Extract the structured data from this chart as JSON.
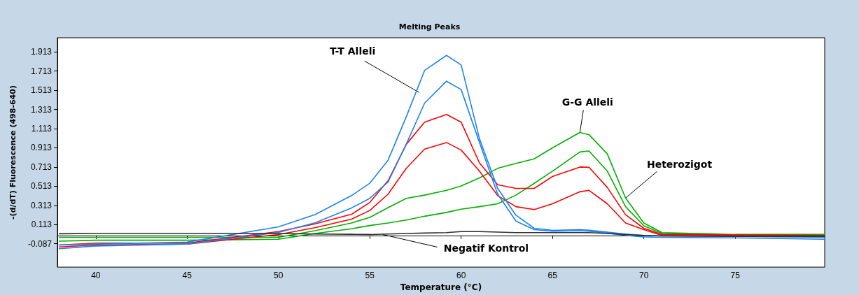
{
  "chart_data": {
    "type": "line",
    "title": "Melting Peaks",
    "xlabel": "Temperature (°C)",
    "ylabel": "-(d/dT) Fluorescence (498-640)",
    "x": [
      38,
      40,
      45,
      50,
      52,
      54,
      55,
      56,
      57,
      58,
      59.2,
      60,
      61,
      62,
      63,
      64,
      65,
      66.5,
      67,
      68,
      69,
      70,
      71,
      75,
      79.9
    ],
    "xlim": [
      37.9,
      79.9
    ],
    "xticks": [
      40,
      45,
      50,
      55,
      60,
      65,
      70,
      75
    ],
    "ylim": [
      -0.33,
      2.06
    ],
    "yticks": [
      -0.087,
      0.113,
      0.313,
      0.513,
      0.713,
      0.913,
      1.113,
      1.313,
      1.513,
      1.713,
      1.913
    ],
    "grid": false,
    "marker": "none",
    "line_style": "solid",
    "series": [
      {
        "color": "#00b000",
        "values": [
          -0.02,
          -0.02,
          -0.02,
          -0.02,
          0.05,
          0.13,
          0.188,
          0.29,
          0.387,
          0.42,
          0.47,
          0.515,
          0.6,
          0.699,
          0.75,
          0.798,
          0.913,
          1.073,
          1.05,
          0.85,
          0.39,
          0.13,
          0.03,
          0.01,
          0.01
        ]
      },
      {
        "color": "#00b000",
        "values": [
          -0.06,
          -0.05,
          -0.05,
          -0.04,
          0.02,
          0.07,
          0.103,
          0.13,
          0.16,
          0.2,
          0.24,
          0.273,
          0.3,
          0.33,
          0.42,
          0.543,
          0.67,
          0.87,
          0.88,
          0.67,
          0.3,
          0.1,
          0.02,
          0.0,
          0.0
        ]
      },
      {
        "color": "#ff0000",
        "values": [
          -0.1,
          -0.08,
          -0.08,
          0.04,
          0.12,
          0.22,
          0.344,
          0.57,
          0.95,
          1.18,
          1.261,
          1.181,
          0.756,
          0.529,
          0.49,
          0.49,
          0.614,
          0.713,
          0.71,
          0.5,
          0.216,
          0.075,
          0.01,
          0.005,
          0.0
        ]
      },
      {
        "color": "#ff0000",
        "values": [
          -0.12,
          -0.1,
          -0.09,
          0.01,
          0.08,
          0.17,
          0.26,
          0.43,
          0.7,
          0.9,
          0.968,
          0.89,
          0.67,
          0.415,
          0.3,
          0.27,
          0.33,
          0.455,
          0.47,
          0.33,
          0.13,
          0.06,
          0.0,
          -0.005,
          -0.01
        ]
      },
      {
        "color": "#1e82f0",
        "values": [
          -0.1,
          -0.09,
          -0.07,
          0.089,
          0.217,
          0.415,
          0.544,
          0.784,
          1.238,
          1.72,
          1.876,
          1.777,
          1.01,
          0.49,
          0.21,
          0.075,
          0.053,
          0.06,
          0.055,
          0.034,
          0.015,
          0.0,
          -0.005,
          -0.01,
          -0.02
        ]
      },
      {
        "color": "#1e82f0",
        "values": [
          -0.138,
          -0.11,
          -0.09,
          0.032,
          0.132,
          0.287,
          0.387,
          0.557,
          0.954,
          1.379,
          1.607,
          1.52,
          0.97,
          0.43,
          0.15,
          0.06,
          0.045,
          0.05,
          0.045,
          0.025,
          0.0,
          -0.015,
          -0.02,
          -0.025,
          -0.04
        ]
      },
      {
        "color": "#303030",
        "values": [
          0.018,
          0.02,
          0.02,
          0.02,
          0.015,
          0.012,
          0.01,
          0.015,
          0.02,
          0.025,
          0.03,
          0.04,
          0.04,
          0.035,
          0.03,
          0.03,
          0.03,
          0.03,
          0.03,
          0.02,
          0.01,
          0.0,
          -0.005,
          -0.01,
          -0.01
        ]
      }
    ],
    "annotations": [
      {
        "text": "T-T Alleli",
        "x": 57.7,
        "y": 1.49
      },
      {
        "text": "G-G Alleli",
        "x": 66.5,
        "y": 1.073
      },
      {
        "text": "Heterozigot",
        "x": 69,
        "y": 0.39
      },
      {
        "text": "Negatif Kontrol",
        "x": 55.7,
        "y": 0.01
      }
    ]
  }
}
